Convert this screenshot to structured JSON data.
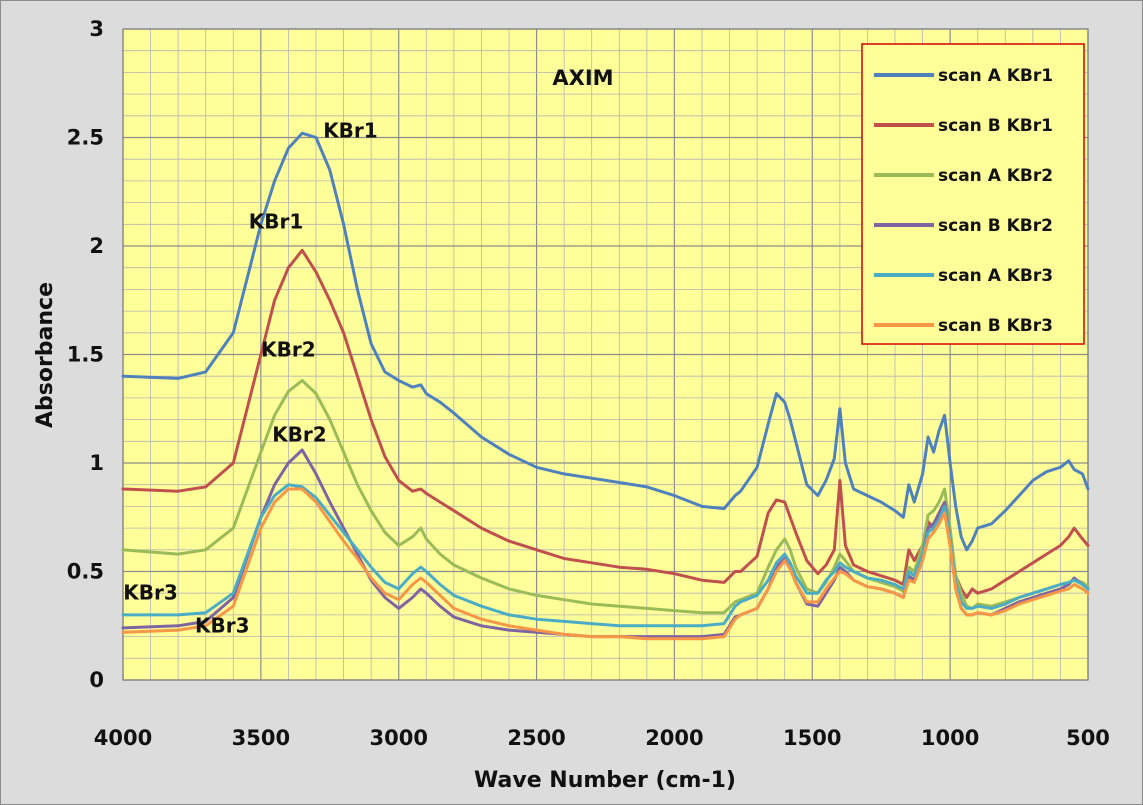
{
  "chart_data": {
    "type": "line",
    "title": "AXIM",
    "xlabel": "Wave Number (cm-1)",
    "ylabel": "Absorbance",
    "xlim": [
      4000,
      500
    ],
    "ylim": [
      0,
      3
    ],
    "x_reversed": true,
    "grid": true,
    "plot_background": "#ffff99",
    "x_ticks": [
      4000,
      3500,
      3000,
      2500,
      2000,
      1500,
      1000,
      500
    ],
    "x_tick_labels": [
      "4000",
      "3500",
      "3000",
      "2500",
      "2000",
      "1500",
      "1000",
      "500"
    ],
    "y_ticks": [
      0,
      0.5,
      1,
      1.5,
      2,
      2.5,
      3
    ],
    "y_tick_labels": [
      "0",
      "0.5",
      "1",
      "1.5",
      "2",
      "2.5",
      "3"
    ],
    "legend_position": "top-right",
    "x": [
      4000,
      3800,
      3700,
      3600,
      3500,
      3450,
      3400,
      3350,
      3300,
      3250,
      3200,
      3150,
      3100,
      3050,
      3000,
      2950,
      2920,
      2900,
      2850,
      2800,
      2700,
      2600,
      2500,
      2400,
      2300,
      2200,
      2100,
      2000,
      1900,
      1820,
      1780,
      1760,
      1700,
      1660,
      1630,
      1600,
      1580,
      1560,
      1520,
      1480,
      1450,
      1420,
      1400,
      1380,
      1350,
      1300,
      1250,
      1200,
      1170,
      1150,
      1130,
      1100,
      1080,
      1060,
      1040,
      1020,
      1000,
      980,
      960,
      940,
      920,
      900,
      850,
      800,
      750,
      700,
      650,
      600,
      570,
      550,
      520,
      500
    ],
    "series": [
      {
        "name": "scan A  KBr1",
        "color": "#4f81bd",
        "values": [
          1.4,
          1.39,
          1.42,
          1.6,
          2.1,
          2.3,
          2.45,
          2.52,
          2.5,
          2.35,
          2.1,
          1.8,
          1.55,
          1.42,
          1.38,
          1.35,
          1.36,
          1.32,
          1.28,
          1.23,
          1.12,
          1.04,
          0.98,
          0.95,
          0.93,
          0.91,
          0.89,
          0.85,
          0.8,
          0.79,
          0.85,
          0.87,
          0.98,
          1.18,
          1.32,
          1.28,
          1.2,
          1.1,
          0.9,
          0.85,
          0.92,
          1.02,
          1.25,
          1.0,
          0.88,
          0.85,
          0.82,
          0.78,
          0.75,
          0.9,
          0.82,
          0.95,
          1.12,
          1.05,
          1.15,
          1.22,
          1.0,
          0.8,
          0.66,
          0.6,
          0.64,
          0.7,
          0.72,
          0.78,
          0.85,
          0.92,
          0.96,
          0.98,
          1.01,
          0.97,
          0.95,
          0.88
        ]
      },
      {
        "name": "scan B  KBr1",
        "color": "#c0504d",
        "values": [
          0.88,
          0.87,
          0.89,
          1.0,
          1.5,
          1.75,
          1.9,
          1.98,
          1.88,
          1.75,
          1.6,
          1.4,
          1.2,
          1.03,
          0.92,
          0.87,
          0.88,
          0.86,
          0.82,
          0.78,
          0.7,
          0.64,
          0.6,
          0.56,
          0.54,
          0.52,
          0.51,
          0.49,
          0.46,
          0.45,
          0.5,
          0.5,
          0.57,
          0.77,
          0.83,
          0.82,
          0.75,
          0.68,
          0.55,
          0.49,
          0.53,
          0.6,
          0.92,
          0.62,
          0.53,
          0.5,
          0.48,
          0.46,
          0.44,
          0.6,
          0.55,
          0.62,
          0.73,
          0.7,
          0.74,
          0.78,
          0.62,
          0.48,
          0.42,
          0.38,
          0.42,
          0.4,
          0.42,
          0.46,
          0.5,
          0.54,
          0.58,
          0.62,
          0.66,
          0.7,
          0.65,
          0.62
        ]
      },
      {
        "name": "scan A  KBr2",
        "color": "#9bbb59",
        "values": [
          0.6,
          0.58,
          0.6,
          0.7,
          1.05,
          1.22,
          1.33,
          1.38,
          1.32,
          1.2,
          1.05,
          0.9,
          0.78,
          0.68,
          0.62,
          0.66,
          0.7,
          0.65,
          0.58,
          0.53,
          0.47,
          0.42,
          0.39,
          0.37,
          0.35,
          0.34,
          0.33,
          0.32,
          0.31,
          0.31,
          0.36,
          0.37,
          0.4,
          0.52,
          0.6,
          0.65,
          0.6,
          0.52,
          0.42,
          0.4,
          0.45,
          0.52,
          0.58,
          0.55,
          0.5,
          0.47,
          0.45,
          0.43,
          0.41,
          0.52,
          0.5,
          0.62,
          0.76,
          0.78,
          0.82,
          0.88,
          0.7,
          0.48,
          0.4,
          0.34,
          0.33,
          0.35,
          0.34,
          0.36,
          0.38,
          0.4,
          0.42,
          0.44,
          0.45,
          0.46,
          0.45,
          0.43
        ]
      },
      {
        "name": "scan B  KBr2",
        "color": "#8064a2",
        "values": [
          0.24,
          0.25,
          0.27,
          0.38,
          0.75,
          0.9,
          1.0,
          1.06,
          0.95,
          0.82,
          0.7,
          0.58,
          0.46,
          0.38,
          0.33,
          0.38,
          0.42,
          0.4,
          0.34,
          0.29,
          0.25,
          0.23,
          0.22,
          0.21,
          0.2,
          0.2,
          0.2,
          0.2,
          0.2,
          0.21,
          0.29,
          0.3,
          0.33,
          0.42,
          0.52,
          0.56,
          0.52,
          0.45,
          0.35,
          0.34,
          0.4,
          0.46,
          0.52,
          0.5,
          0.46,
          0.43,
          0.42,
          0.4,
          0.38,
          0.48,
          0.46,
          0.58,
          0.7,
          0.72,
          0.77,
          0.82,
          0.65,
          0.42,
          0.33,
          0.3,
          0.3,
          0.31,
          0.3,
          0.33,
          0.36,
          0.38,
          0.4,
          0.42,
          0.44,
          0.47,
          0.44,
          0.42
        ]
      },
      {
        "name": "scan A  KBr3",
        "color": "#4bacc6",
        "values": [
          0.3,
          0.3,
          0.31,
          0.4,
          0.75,
          0.85,
          0.9,
          0.89,
          0.84,
          0.76,
          0.68,
          0.6,
          0.52,
          0.45,
          0.42,
          0.49,
          0.52,
          0.5,
          0.44,
          0.39,
          0.34,
          0.3,
          0.28,
          0.27,
          0.26,
          0.25,
          0.25,
          0.25,
          0.25,
          0.26,
          0.34,
          0.36,
          0.39,
          0.46,
          0.54,
          0.58,
          0.54,
          0.48,
          0.4,
          0.4,
          0.46,
          0.5,
          0.54,
          0.52,
          0.5,
          0.47,
          0.46,
          0.44,
          0.42,
          0.5,
          0.48,
          0.58,
          0.68,
          0.7,
          0.74,
          0.8,
          0.65,
          0.45,
          0.36,
          0.33,
          0.33,
          0.34,
          0.33,
          0.35,
          0.38,
          0.4,
          0.42,
          0.44,
          0.45,
          0.46,
          0.44,
          0.42
        ]
      },
      {
        "name": "scan B  KBr3",
        "color": "#f79646",
        "values": [
          0.22,
          0.23,
          0.25,
          0.34,
          0.7,
          0.82,
          0.88,
          0.88,
          0.82,
          0.73,
          0.64,
          0.56,
          0.47,
          0.4,
          0.37,
          0.44,
          0.47,
          0.45,
          0.39,
          0.33,
          0.28,
          0.25,
          0.23,
          0.21,
          0.2,
          0.2,
          0.19,
          0.19,
          0.19,
          0.2,
          0.28,
          0.3,
          0.33,
          0.42,
          0.5,
          0.55,
          0.51,
          0.45,
          0.36,
          0.36,
          0.42,
          0.47,
          0.5,
          0.49,
          0.46,
          0.43,
          0.42,
          0.4,
          0.38,
          0.46,
          0.45,
          0.55,
          0.65,
          0.68,
          0.72,
          0.77,
          0.62,
          0.42,
          0.33,
          0.3,
          0.3,
          0.31,
          0.3,
          0.32,
          0.35,
          0.37,
          0.39,
          0.41,
          0.42,
          0.44,
          0.42,
          0.4
        ]
      }
    ],
    "annotations": [
      {
        "text": "KBr1",
        "x": 3175,
        "y": 2.5
      },
      {
        "text": "KBr1",
        "x": 3445,
        "y": 2.08
      },
      {
        "text": "KBr2",
        "x": 3400,
        "y": 1.49
      },
      {
        "text": "KBr2",
        "x": 3360,
        "y": 1.1
      },
      {
        "text": "KBr3",
        "x": 3900,
        "y": 0.37
      },
      {
        "text": "KBr3",
        "x": 3640,
        "y": 0.22
      }
    ]
  }
}
